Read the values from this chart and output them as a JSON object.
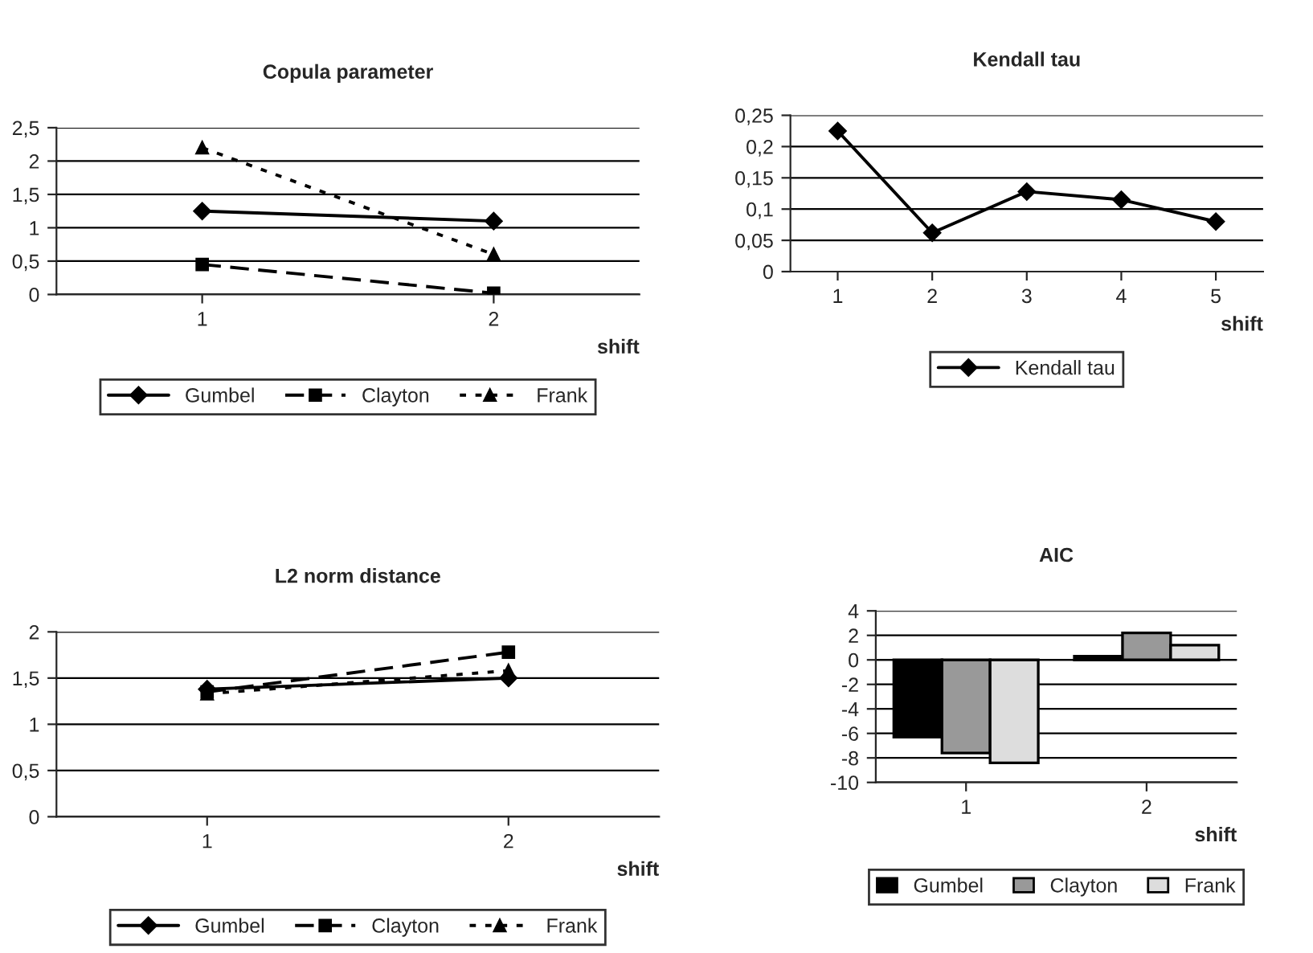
{
  "chart_data": [
    {
      "type": "line",
      "title": "Copula parameter",
      "xlabel": "shift",
      "categories": [
        "1",
        "2"
      ],
      "ylim": [
        0,
        2.5
      ],
      "yticks": [
        0,
        {
          "value": 0.5,
          "label": "0,5"
        },
        1,
        {
          "value": 1.5,
          "label": "1,5"
        },
        2,
        {
          "value": 2.5,
          "label": "2,5"
        }
      ],
      "grid": "y",
      "legend": "bottom",
      "series": [
        {
          "name": "Gumbel",
          "color": "#000000",
          "marker": "diamond",
          "line_style": "solid",
          "values": [
            1.25,
            1.1
          ]
        },
        {
          "name": "Clayton",
          "color": "#000000",
          "marker": "square",
          "line_style": "dashed",
          "values": [
            0.45,
            0.02
          ]
        },
        {
          "name": "Frank",
          "color": "#000000",
          "marker": "triangle",
          "line_style": "dotted",
          "values": [
            2.2,
            0.6
          ]
        }
      ]
    },
    {
      "type": "line",
      "title": "Kendall tau",
      "xlabel": "shift",
      "categories": [
        "1",
        "2",
        "3",
        "4",
        "5"
      ],
      "ylim": [
        0,
        0.25
      ],
      "yticks": [
        0,
        {
          "value": 0.05,
          "label": "0,05"
        },
        {
          "value": 0.1,
          "label": "0,1"
        },
        {
          "value": 0.15,
          "label": "0,15"
        },
        {
          "value": 0.2,
          "label": "0,2"
        },
        {
          "value": 0.25,
          "label": "0,25"
        }
      ],
      "grid": "y",
      "legend": "bottom",
      "series": [
        {
          "name": "Kendall tau",
          "color": "#000000",
          "marker": "diamond",
          "line_style": "solid",
          "values": [
            0.225,
            0.062,
            0.128,
            0.115,
            0.08
          ]
        }
      ]
    },
    {
      "type": "line",
      "title": "L2 norm distance",
      "xlabel": "shift",
      "categories": [
        "1",
        "2"
      ],
      "ylim": [
        0,
        2
      ],
      "yticks": [
        0,
        {
          "value": 0.5,
          "label": "0,5"
        },
        1,
        {
          "value": 1.5,
          "label": "1,5"
        },
        2
      ],
      "grid": "y",
      "legend": "bottom",
      "series": [
        {
          "name": "Gumbel",
          "color": "#000000",
          "marker": "diamond",
          "line_style": "solid",
          "values": [
            1.38,
            1.5
          ]
        },
        {
          "name": "Clayton",
          "color": "#000000",
          "marker": "square",
          "line_style": "dashed",
          "values": [
            1.35,
            1.78
          ]
        },
        {
          "name": "Frank",
          "color": "#000000",
          "marker": "triangle",
          "line_style": "dotted",
          "values": [
            1.33,
            1.58
          ]
        }
      ]
    },
    {
      "type": "bar",
      "title": "AIC",
      "xlabel": "shift",
      "categories": [
        "1",
        "2"
      ],
      "ylim": [
        -10,
        4
      ],
      "yticks": [
        -10,
        -8,
        -6,
        -4,
        -2,
        0,
        2,
        4
      ],
      "grid": "y",
      "legend": "bottom",
      "series": [
        {
          "name": "Gumbel",
          "color": "#000000",
          "values": [
            -6.3,
            0.3
          ]
        },
        {
          "name": "Clayton",
          "color": "#999999",
          "values": [
            -7.6,
            2.2
          ]
        },
        {
          "name": "Frank",
          "color": "#dddddd",
          "values": [
            -8.4,
            1.2
          ]
        }
      ]
    }
  ]
}
